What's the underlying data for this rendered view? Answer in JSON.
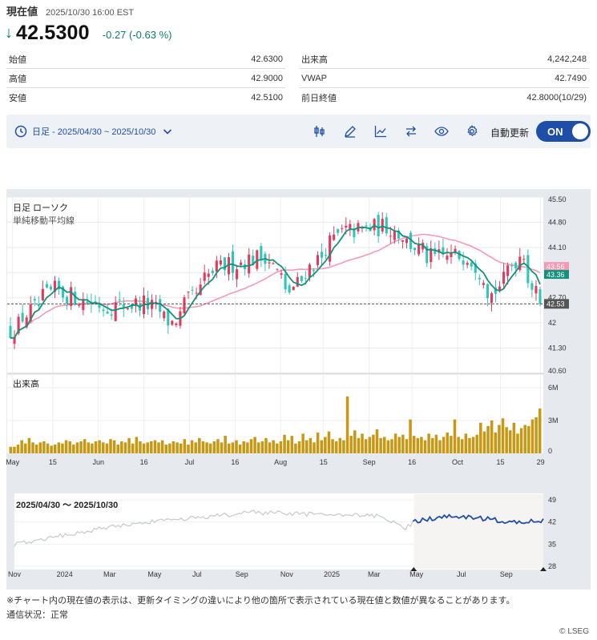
{
  "header": {
    "title": "現在値",
    "timestamp": "2025/10/30 16:00 EST",
    "price": "42.5300",
    "change": "-0.27 (-0.63 %)"
  },
  "stats_left": [
    {
      "label": "始値",
      "value": "42.6300"
    },
    {
      "label": "高値",
      "value": "42.9000"
    },
    {
      "label": "安値",
      "value": "42.5100"
    }
  ],
  "stats_right": [
    {
      "label": "出来高",
      "value": "4,242,248"
    },
    {
      "label": "VWAP",
      "value": "42.7490"
    },
    {
      "label": "前日終値",
      "value": "42.8000(10/29)"
    }
  ],
  "toolbar": {
    "range_label": "日足 - 2025/04/30 ~ 2025/10/30",
    "auto_update_label": "自動更新",
    "toggle_label": "ON",
    "icons": [
      "candlestick-icon",
      "draw-pen-icon",
      "line-chart-icon",
      "compare-arrows-icon",
      "eye-icon",
      "gear-icon"
    ]
  },
  "colors": {
    "up": "#e23b5c",
    "down": "#2ec6b8",
    "ma_short": "#13917c",
    "ma_long": "#f49ab4",
    "volume": "#c99712",
    "accent": "#1e4ea8"
  },
  "chart_data": [
    {
      "type": "candlestick",
      "title": "日足 ローソク",
      "subtitle": "単純移動平均線",
      "y_ticks": [
        "45.50",
        "44.80",
        "44.10",
        "43.40",
        "42.70",
        "42",
        "41.30",
        "40.60"
      ],
      "ylim": [
        40.6,
        45.5
      ],
      "x_ticks": [
        "May",
        "15",
        "Jun",
        "16",
        "Jul",
        "16",
        "Aug",
        "15",
        "Sep",
        "16",
        "Oct",
        "15",
        "29"
      ],
      "current_price_label": "42.53",
      "ma_long_label": "43.56",
      "ma_short_label": "43.36",
      "key_points": [
        {
          "date": "2025-04-30",
          "close": 41.8
        },
        {
          "date": "2025-05-15",
          "close": 42.9
        },
        {
          "date": "2025-06-02",
          "close": 42.45
        },
        {
          "date": "2025-06-16",
          "close": 42.55
        },
        {
          "date": "2025-06-25",
          "close": 42.0
        },
        {
          "date": "2025-07-10",
          "close": 43.5
        },
        {
          "date": "2025-07-28",
          "close": 43.9
        },
        {
          "date": "2025-08-04",
          "close": 42.8
        },
        {
          "date": "2025-08-22",
          "close": 44.5
        },
        {
          "date": "2025-09-08",
          "close": 44.7
        },
        {
          "date": "2025-09-22",
          "close": 43.8
        },
        {
          "date": "2025-10-06",
          "close": 43.9
        },
        {
          "date": "2025-10-14",
          "close": 42.8
        },
        {
          "date": "2025-10-24",
          "close": 44.0
        },
        {
          "date": "2025-10-30",
          "close": 42.53
        }
      ]
    },
    {
      "type": "bar",
      "title": "出来高",
      "y_ticks": [
        "6M",
        "3M",
        "0"
      ],
      "ylim": [
        0,
        6
      ],
      "values_m": [
        0.6,
        0.6,
        0.8,
        1.2,
        0.9,
        1.4,
        1.0,
        0.8,
        1.0,
        1.1,
        0.9,
        0.7,
        0.8,
        1.0,
        0.9,
        1.2,
        1.1,
        0.8,
        1.0,
        1.1,
        1.3,
        1.0,
        0.9,
        1.1,
        1.2,
        1.0,
        0.9,
        1.3,
        1.2,
        0.8,
        1.1,
        1.0,
        1.4,
        0.9,
        1.5,
        1.1,
        0.9,
        1.0,
        1.1,
        1.2,
        1.0,
        1.2,
        0.8,
        0.9,
        1.1,
        1.0,
        0.9,
        1.3,
        0.8,
        1.2,
        1.0,
        1.4,
        1.1,
        1.0,
        0.9,
        1.1,
        1.3,
        1.0,
        1.6,
        0.9,
        1.0,
        1.2,
        0.8,
        1.1,
        1.0,
        1.3,
        1.5,
        1.0,
        1.1,
        1.4,
        1.0,
        1.2,
        0.9,
        1.1,
        1.7,
        1.2,
        1.6,
        0.9,
        1.1,
        1.8,
        1.2,
        1.4,
        1.0,
        1.9,
        1.2,
        1.5,
        2.0,
        1.3,
        1.1,
        1.4,
        1.2,
        5.2,
        1.6,
        2.1,
        1.4,
        1.8,
        1.3,
        1.5,
        1.7,
        2.2,
        1.4,
        1.5,
        1.2,
        1.3,
        1.8,
        1.5,
        1.7,
        1.3,
        3.1,
        1.6,
        1.4,
        1.5,
        1.2,
        1.8,
        1.4,
        1.7,
        1.2,
        1.5,
        1.9,
        1.6,
        3.1,
        1.5,
        1.3,
        1.8,
        1.4,
        1.5,
        1.7,
        2.8,
        2.0,
        2.5,
        3.0,
        1.9,
        2.6,
        3.2,
        2.4,
        2.1,
        2.8,
        1.8,
        2.3,
        2.6,
        2.5,
        3.1,
        3.3,
        4.1
      ]
    },
    {
      "type": "line",
      "title": "2025/04/30 〜 2025/10/30",
      "y_ticks": [
        "49",
        "42",
        "35",
        "28"
      ],
      "ylim": [
        28,
        49
      ],
      "x_ticks": [
        "Nov",
        "2024",
        "Mar",
        "May",
        "Jul",
        "Sep",
        "Nov",
        "2025",
        "Mar",
        "May",
        "Jul",
        "Sep"
      ]
    }
  ],
  "footer": {
    "note": "※チャート内の現在値の表示は、更新タイミングの違いにより他の箇所で表示されている現在値と数値が異なることがあります。",
    "status": "通信状況：正常",
    "credit": "© LSEG"
  }
}
